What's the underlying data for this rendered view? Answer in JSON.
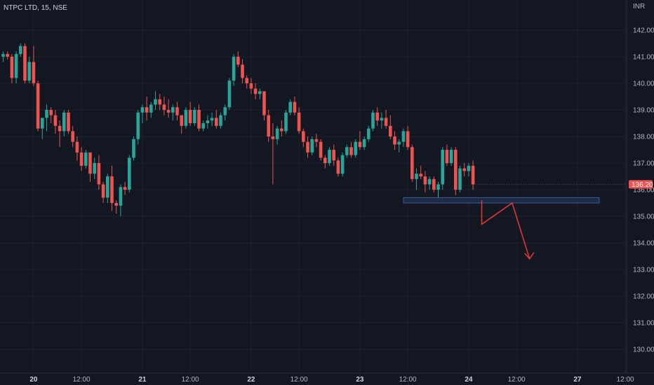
{
  "header": {
    "symbol": "NTPC LTD, 15, NSE",
    "currency": "INR"
  },
  "colors": {
    "background": "#131722",
    "up": "#26a69a",
    "down": "#ef5350",
    "grid": "#1e222d",
    "zone": "#1e2a44",
    "zone_border": "#3a5a9a",
    "arrow": "#e53935"
  },
  "last_price": "136.20",
  "chart_data": {
    "type": "candlestick",
    "ylim": [
      129.5,
      142.6
    ],
    "y_ticks": [
      142,
      141,
      140,
      139,
      138,
      137,
      136,
      135,
      134,
      133,
      132,
      131,
      130
    ],
    "y_tick_labels": [
      "142.00",
      "141.00",
      "140.00",
      "139.00",
      "138.00",
      "137.00",
      "136.00",
      "135.00",
      "134.00",
      "133.00",
      "132.00",
      "131.00",
      "130.00"
    ],
    "x_tick_labels": [
      {
        "label": "20",
        "bar": 7
      },
      {
        "label": "12:00",
        "bar": 18
      },
      {
        "label": "21",
        "bar": 32
      },
      {
        "label": "12:00",
        "bar": 43
      },
      {
        "label": "22",
        "bar": 57
      },
      {
        "label": "12:00",
        "bar": 68
      },
      {
        "label": "23",
        "bar": 82
      },
      {
        "label": "12:00",
        "bar": 93
      },
      {
        "label": "24",
        "bar": 107
      },
      {
        "label": "12:00",
        "bar": 118
      },
      {
        "label": "27",
        "bar": 132
      },
      {
        "label": "12:00",
        "bar": 143
      }
    ],
    "candles": [
      [
        141.0,
        141.2,
        140.8,
        141.1
      ],
      [
        141.1,
        141.2,
        140.9,
        141.0
      ],
      [
        141.0,
        141.1,
        140.0,
        140.2
      ],
      [
        140.2,
        141.2,
        140.0,
        141.1
      ],
      [
        141.1,
        141.5,
        141.0,
        141.4
      ],
      [
        141.4,
        141.5,
        140.0,
        140.1
      ],
      [
        140.1,
        141.0,
        140.0,
        140.8
      ],
      [
        140.8,
        141.4,
        139.9,
        140.0
      ],
      [
        140.0,
        140.1,
        138.2,
        138.3
      ],
      [
        138.3,
        138.7,
        137.9,
        138.7
      ],
      [
        138.7,
        139.2,
        138.2,
        139.0
      ],
      [
        139.0,
        139.1,
        138.5,
        138.8
      ],
      [
        138.8,
        139.0,
        138.1,
        138.4
      ],
      [
        138.4,
        138.6,
        137.6,
        138.2
      ],
      [
        138.2,
        139.0,
        138.0,
        138.9
      ],
      [
        138.9,
        139.0,
        138.1,
        138.2
      ],
      [
        138.2,
        138.4,
        137.6,
        137.8
      ],
      [
        137.8,
        138.0,
        137.1,
        137.4
      ],
      [
        137.4,
        137.6,
        136.7,
        136.9
      ],
      [
        136.9,
        137.5,
        136.8,
        137.4
      ],
      [
        137.4,
        137.4,
        136.3,
        136.6
      ],
      [
        136.6,
        137.2,
        136.4,
        137.0
      ],
      [
        137.0,
        137.3,
        136.0,
        136.2
      ],
      [
        136.2,
        136.3,
        135.5,
        135.7
      ],
      [
        135.7,
        136.6,
        135.5,
        136.5
      ],
      [
        136.5,
        136.9,
        135.2,
        135.5
      ],
      [
        135.5,
        135.6,
        135.1,
        135.4
      ],
      [
        135.4,
        136.2,
        135.0,
        136.1
      ],
      [
        136.1,
        136.3,
        135.8,
        136.0
      ],
      [
        136.0,
        137.3,
        135.9,
        137.2
      ],
      [
        137.2,
        138.0,
        137.1,
        137.9
      ],
      [
        137.9,
        139.0,
        137.7,
        138.9
      ],
      [
        138.9,
        139.2,
        138.5,
        139.1
      ],
      [
        139.1,
        139.5,
        138.6,
        138.9
      ],
      [
        138.9,
        139.3,
        138.7,
        139.2
      ],
      [
        139.2,
        139.7,
        139.0,
        139.4
      ],
      [
        139.4,
        139.6,
        139.0,
        139.2
      ],
      [
        139.2,
        139.5,
        138.8,
        139.0
      ],
      [
        139.0,
        139.4,
        138.7,
        138.9
      ],
      [
        138.9,
        139.2,
        138.6,
        139.1
      ],
      [
        139.1,
        139.3,
        138.6,
        138.8
      ],
      [
        138.8,
        138.8,
        138.1,
        138.4
      ],
      [
        138.4,
        139.1,
        138.3,
        139.0
      ],
      [
        139.0,
        139.3,
        138.4,
        138.5
      ],
      [
        138.5,
        139.1,
        138.4,
        139.0
      ],
      [
        139.0,
        139.2,
        138.2,
        138.3
      ],
      [
        138.3,
        138.6,
        138.2,
        138.5
      ],
      [
        138.5,
        138.8,
        138.3,
        138.6
      ],
      [
        138.6,
        138.9,
        138.4,
        138.7
      ],
      [
        138.7,
        139.0,
        138.3,
        138.4
      ],
      [
        138.4,
        138.9,
        138.3,
        138.8
      ],
      [
        138.8,
        139.2,
        138.6,
        139.1
      ],
      [
        139.1,
        140.2,
        139.0,
        140.1
      ],
      [
        140.1,
        141.1,
        139.9,
        141.0
      ],
      [
        141.0,
        141.2,
        140.6,
        140.7
      ],
      [
        140.7,
        140.9,
        140.0,
        140.2
      ],
      [
        140.2,
        140.3,
        139.8,
        140.0
      ],
      [
        140.0,
        140.2,
        139.6,
        139.8
      ],
      [
        139.8,
        140.0,
        139.4,
        139.6
      ],
      [
        139.6,
        139.8,
        139.4,
        139.7
      ],
      [
        139.7,
        139.7,
        138.6,
        138.8
      ],
      [
        138.8,
        139.0,
        137.8,
        138.0
      ],
      [
        138.0,
        138.5,
        136.2,
        137.9
      ],
      [
        137.9,
        138.4,
        137.7,
        138.3
      ],
      [
        138.3,
        138.6,
        138.0,
        138.2
      ],
      [
        138.2,
        139.0,
        138.1,
        138.9
      ],
      [
        138.9,
        139.4,
        138.8,
        139.3
      ],
      [
        139.3,
        139.5,
        138.8,
        138.9
      ],
      [
        138.9,
        139.1,
        138.1,
        138.2
      ],
      [
        138.2,
        138.3,
        137.6,
        137.8
      ],
      [
        137.8,
        138.0,
        137.2,
        137.4
      ],
      [
        137.4,
        138.0,
        137.3,
        137.9
      ],
      [
        137.9,
        138.1,
        137.6,
        137.8
      ],
      [
        137.8,
        137.9,
        137.1,
        137.2
      ],
      [
        137.2,
        137.3,
        136.8,
        137.0
      ],
      [
        137.0,
        137.6,
        136.9,
        137.5
      ],
      [
        137.5,
        137.7,
        136.9,
        137.1
      ],
      [
        137.1,
        137.2,
        136.5,
        136.6
      ],
      [
        136.6,
        137.4,
        136.5,
        137.3
      ],
      [
        137.3,
        137.7,
        137.2,
        137.6
      ],
      [
        137.6,
        137.8,
        137.2,
        137.3
      ],
      [
        137.3,
        137.9,
        137.2,
        137.8
      ],
      [
        137.8,
        138.2,
        137.5,
        137.6
      ],
      [
        137.6,
        138.0,
        137.5,
        137.9
      ],
      [
        137.9,
        138.4,
        137.8,
        138.3
      ],
      [
        138.3,
        139.0,
        138.2,
        138.9
      ],
      [
        138.9,
        139.1,
        138.4,
        138.6
      ],
      [
        138.6,
        138.9,
        138.3,
        138.7
      ],
      [
        138.7,
        139.0,
        138.3,
        138.4
      ],
      [
        138.4,
        138.8,
        137.9,
        138.0
      ],
      [
        138.0,
        138.2,
        137.5,
        137.7
      ],
      [
        137.7,
        137.9,
        137.4,
        137.8
      ],
      [
        137.8,
        138.3,
        137.6,
        138.2
      ],
      [
        138.2,
        138.4,
        137.5,
        137.6
      ],
      [
        137.6,
        137.7,
        136.3,
        136.4
      ],
      [
        136.4,
        136.8,
        136.0,
        136.6
      ],
      [
        136.6,
        136.9,
        136.4,
        136.5
      ],
      [
        136.5,
        136.7,
        135.9,
        136.2
      ],
      [
        136.2,
        136.5,
        136.0,
        136.4
      ],
      [
        136.4,
        136.5,
        135.9,
        136.0
      ],
      [
        136.0,
        136.3,
        135.7,
        136.2
      ],
      [
        136.2,
        137.6,
        136.0,
        137.5
      ],
      [
        137.5,
        137.7,
        136.9,
        137.0
      ],
      [
        137.0,
        137.6,
        136.9,
        137.5
      ],
      [
        137.5,
        137.6,
        135.8,
        136.0
      ],
      [
        136.0,
        136.9,
        135.9,
        136.8
      ],
      [
        136.8,
        137.0,
        136.5,
        136.7
      ],
      [
        136.7,
        137.0,
        136.5,
        136.9
      ],
      [
        136.9,
        137.1,
        136.0,
        136.2
      ]
    ],
    "support_zone": {
      "from": 135.5,
      "to": 135.7,
      "start_bar": 92,
      "end_bar": 137
    },
    "projection_path": {
      "bars": [
        110,
        110,
        117,
        121
      ],
      "prices": [
        135.6,
        134.7,
        135.5,
        133.4
      ]
    }
  }
}
